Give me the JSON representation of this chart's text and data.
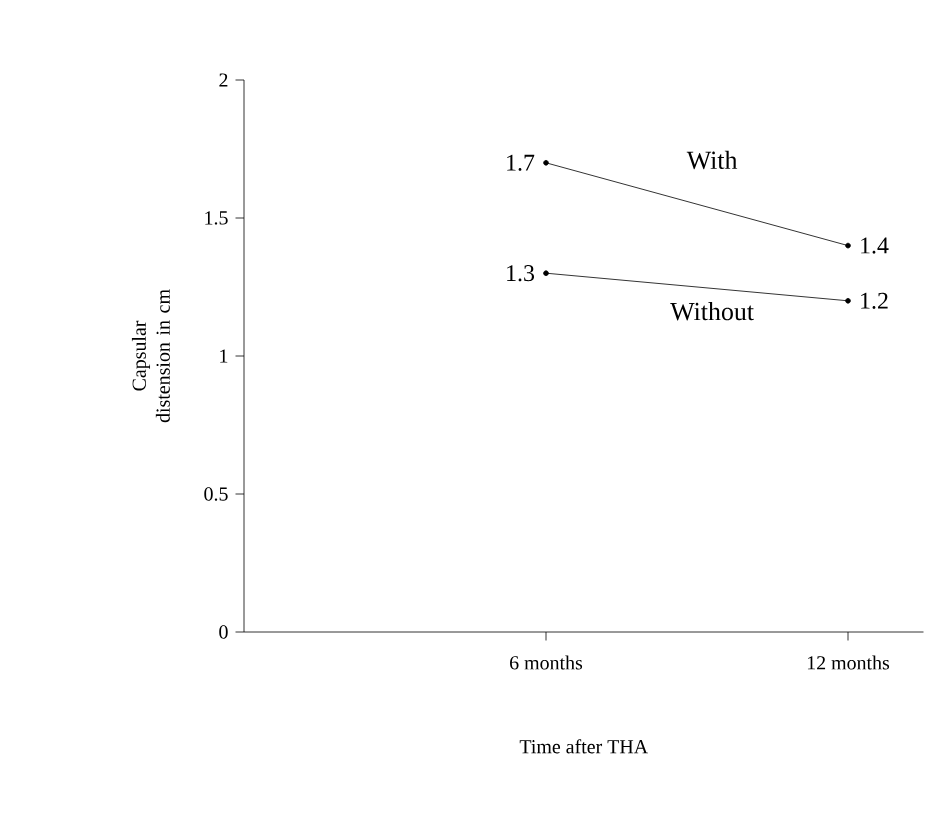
{
  "chart_data": {
    "type": "line",
    "xlabel": "Time after THA",
    "ylabel": "Capsular distension in cm",
    "categories": [
      "6 months",
      "12 months"
    ],
    "series": [
      {
        "name": "With",
        "color": "#000000",
        "values": [
          1.7,
          1.4
        ]
      },
      {
        "name": "Without",
        "color": "#000000",
        "values": [
          1.3,
          1.2
        ]
      }
    ],
    "ylim": [
      0,
      2
    ],
    "yticks": [
      0,
      0.5,
      1,
      1.5,
      2
    ],
    "data_labels": true,
    "marker": "circle",
    "line_style": "solid",
    "grid": false
  }
}
